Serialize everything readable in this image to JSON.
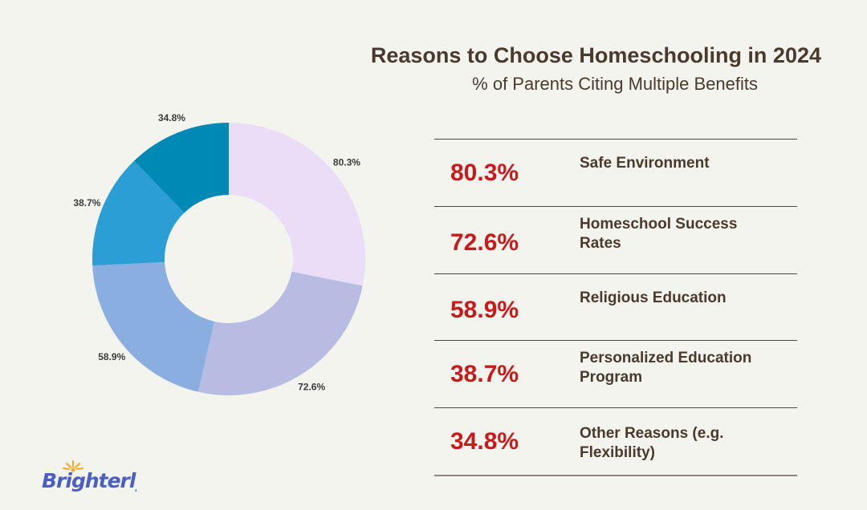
{
  "chart_data": {
    "type": "pie",
    "variant": "donut",
    "title": "Reasons to Choose Homeschooling in 2024",
    "subtitle": "% of Parents Citing Multiple Benefits",
    "categories": [
      "Safe Environment",
      "Homeschool Success Rates",
      "Religious Education",
      "Personalized Education Program",
      "Other Reasons (e.g. Flexibility)"
    ],
    "values": [
      80.3,
      72.6,
      58.9,
      38.7,
      34.8
    ],
    "data_labels": [
      "80.3%",
      "72.6%",
      "58.9%",
      "38.7%",
      "34.8%"
    ],
    "colors": [
      "#e9ddf7",
      "#b8bce3",
      "#8aaee0",
      "#2b9ed6",
      "#0089b5"
    ]
  },
  "table": [
    {
      "value": "80.3%",
      "label": "Safe Environment"
    },
    {
      "value": "72.6%",
      "label": "Homeschool Success Rates"
    },
    {
      "value": "58.9%",
      "label": "Religious Education"
    },
    {
      "value": "38.7%",
      "label": "Personalized Education Program"
    },
    {
      "value": "34.8%",
      "label": "Other Reasons (e.g. Flexibility)"
    }
  ],
  "logo": {
    "text": "Brighterly",
    "color": "#4a5fc1",
    "accent": "#f4a623"
  }
}
